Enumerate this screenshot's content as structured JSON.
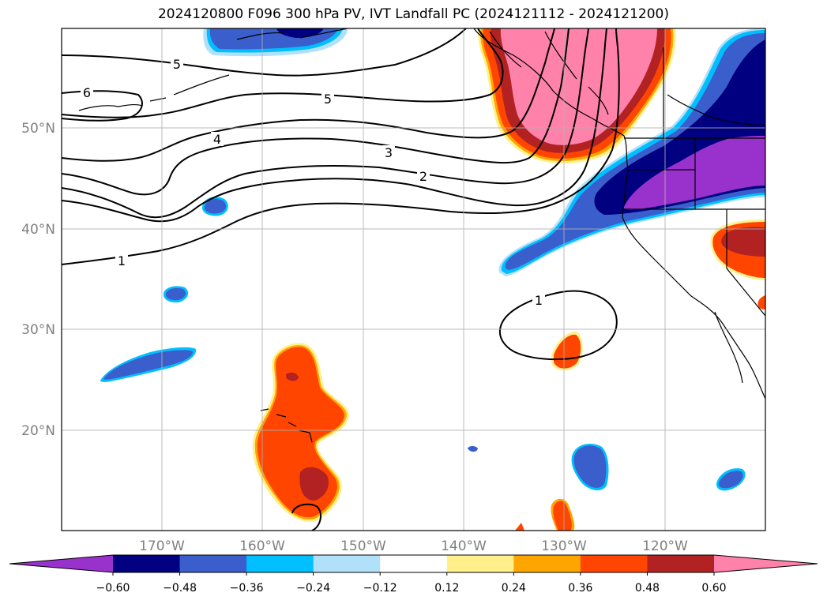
{
  "title": "2024120800 F096 300 hPa PV, IVT Landfall PC (2024121112 - 2024121200)",
  "map": {
    "lat_labels": [
      "50°N",
      "40°N",
      "30°N",
      "20°N"
    ],
    "lon_labels": [
      "170°W",
      "160°W",
      "150°W",
      "140°W",
      "130°W",
      "120°W"
    ],
    "contour_labels": [
      "5",
      "6",
      "5",
      "4",
      "3",
      "2",
      "1",
      "1"
    ],
    "colors": {
      "purple": "#9932cc",
      "navy": "#000080",
      "royal_blue": "#3a5fcd",
      "deep_sky": "#00bfff",
      "light_blue": "#b0e0fa",
      "light_yellow": "#fff08c",
      "orange": "#ffa500",
      "orange_red": "#ff4500",
      "firebrick": "#b22222",
      "pink": "#ff82ab"
    }
  },
  "colorbar": {
    "ticks": [
      "−0.60",
      "−0.48",
      "−0.36",
      "−0.24",
      "−0.12",
      "0.12",
      "0.24",
      "0.36",
      "0.48",
      "0.60"
    ],
    "colors": [
      "#9932cc",
      "#000080",
      "#3a5fcd",
      "#00bfff",
      "#b0e0fa",
      "#ffffff",
      "#fff08c",
      "#ffa500",
      "#ff4500",
      "#b22222",
      "#ff82ab"
    ]
  }
}
